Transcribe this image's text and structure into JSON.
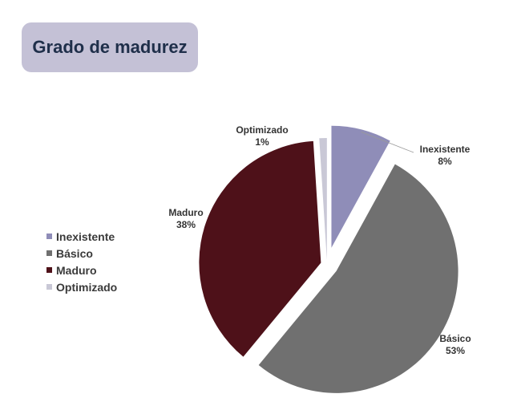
{
  "header": {
    "title": "Grado de madurez"
  },
  "chart_data": {
    "type": "pie",
    "categories": [
      "Inexistente",
      "Básico",
      "Maduro",
      "Optimizado"
    ],
    "values": [
      8,
      53,
      38,
      1
    ],
    "data_labels": [
      "8%",
      "53%",
      "38%",
      "1%"
    ],
    "colors": [
      "#8f8db8",
      "#707070",
      "#4e1119",
      "#c9c8d6"
    ],
    "legend_position": "left"
  }
}
